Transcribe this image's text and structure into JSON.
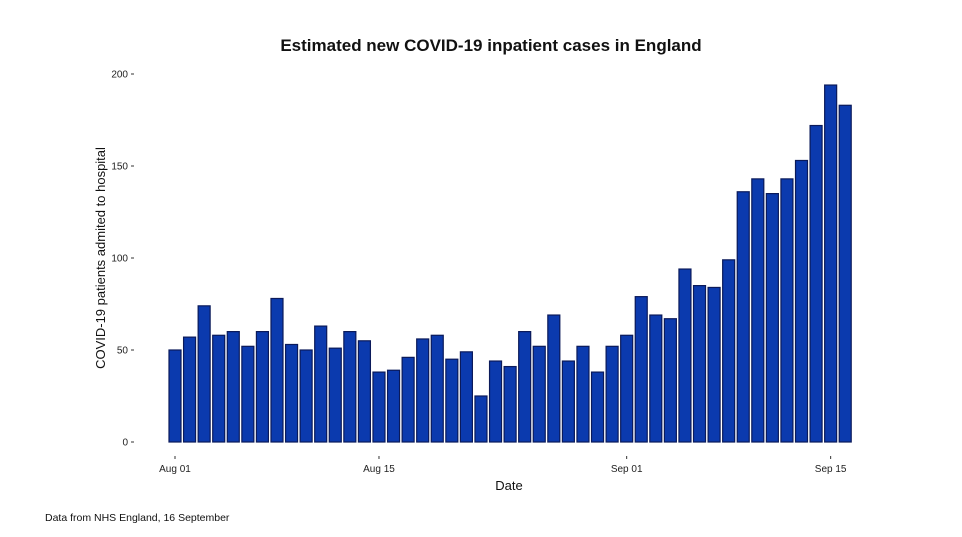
{
  "chart_data": {
    "type": "bar",
    "title": "Estimated new COVID-19 inpatient cases in England",
    "xlabel": "Date",
    "ylabel": "COVID-19 patients admited to hospital",
    "ylim": [
      0,
      200
    ],
    "yticks": [
      0,
      50,
      100,
      150,
      200
    ],
    "xticks": [
      {
        "label": "Aug 01",
        "index": 0
      },
      {
        "label": "Aug 15",
        "index": 14
      },
      {
        "label": "Sep 01",
        "index": 31
      },
      {
        "label": "Sep 15",
        "index": 45
      }
    ],
    "grid": false,
    "legend": "none",
    "bar_color": "#0b3aae",
    "bar_edge_color": "#0b1a5a",
    "categories": [
      "Aug 01",
      "Aug 02",
      "Aug 03",
      "Aug 04",
      "Aug 05",
      "Aug 06",
      "Aug 07",
      "Aug 08",
      "Aug 09",
      "Aug 10",
      "Aug 11",
      "Aug 12",
      "Aug 13",
      "Aug 14",
      "Aug 15",
      "Aug 16",
      "Aug 17",
      "Aug 18",
      "Aug 19",
      "Aug 20",
      "Aug 21",
      "Aug 22",
      "Aug 23",
      "Aug 24",
      "Aug 25",
      "Aug 26",
      "Aug 27",
      "Aug 28",
      "Aug 29",
      "Aug 30",
      "Aug 31",
      "Sep 01",
      "Sep 02",
      "Sep 03",
      "Sep 04",
      "Sep 05",
      "Sep 06",
      "Sep 07",
      "Sep 08",
      "Sep 09",
      "Sep 10",
      "Sep 11",
      "Sep 12",
      "Sep 13",
      "Sep 14",
      "Sep 15",
      "Sep 16"
    ],
    "values": [
      50,
      57,
      74,
      58,
      60,
      52,
      60,
      78,
      53,
      50,
      63,
      51,
      60,
      55,
      38,
      39,
      46,
      56,
      58,
      45,
      49,
      25,
      44,
      41,
      60,
      52,
      69,
      44,
      52,
      38,
      52,
      58,
      79,
      69,
      67,
      94,
      85,
      84,
      99,
      136,
      143,
      135,
      143,
      153,
      172,
      194,
      183
    ]
  },
  "footer": {
    "source_note": "Data from NHS England, 16 September"
  }
}
